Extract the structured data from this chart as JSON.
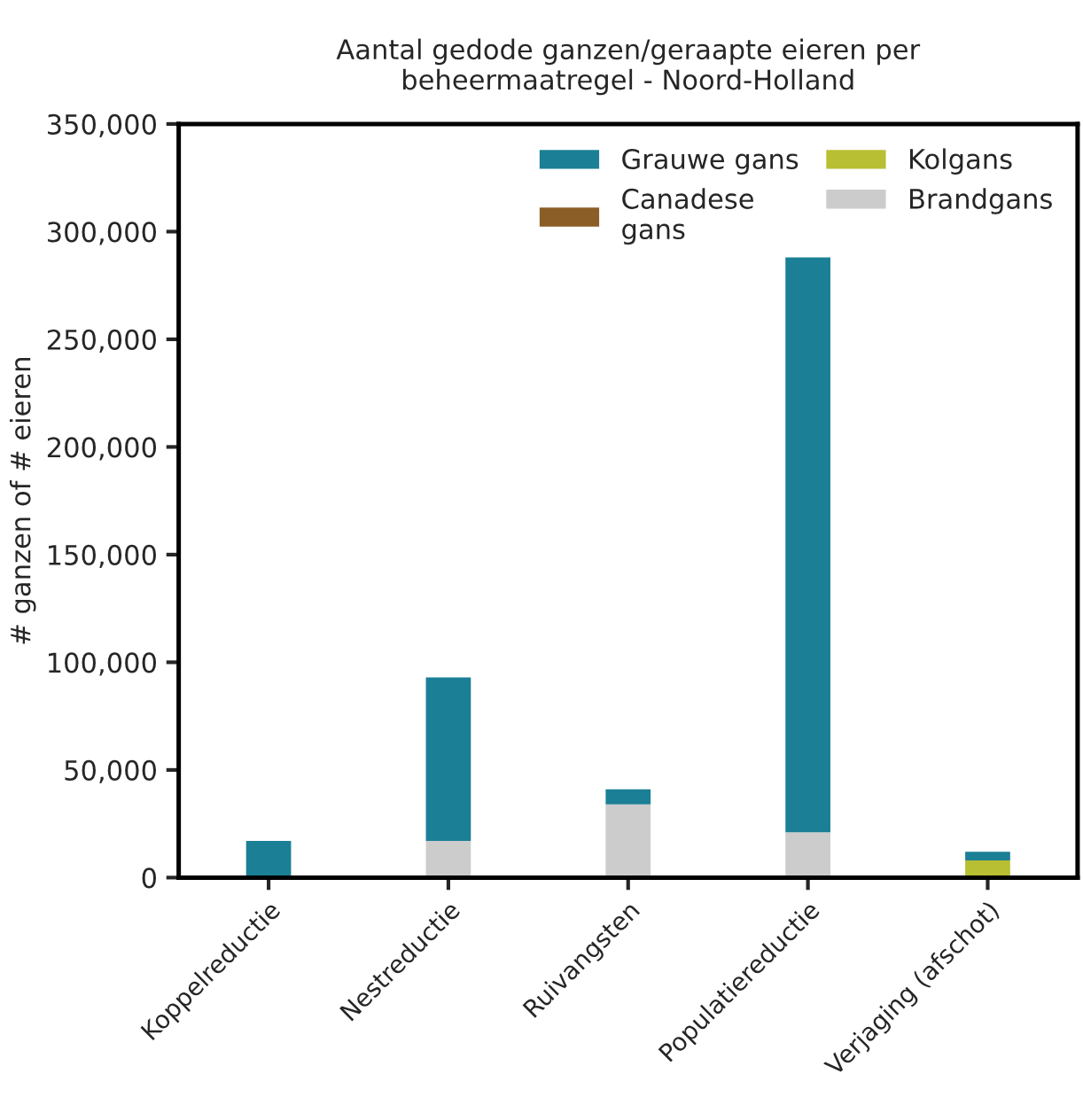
{
  "chart_data": {
    "type": "bar",
    "title": "Aantal gedode ganzen/geraapte eieren per\nbeheermaatregel - Noord-Holland",
    "ylabel": "# ganzen of # eieren",
    "categories": [
      "Koppelreductie",
      "Nestreductie",
      "Ruivangsten",
      "Populatiereductie",
      "Verjaging (afschot)"
    ],
    "stacked": true,
    "series": [
      {
        "name": "Brandgans",
        "color": "#cccccc",
        "values": [
          0,
          17000,
          34000,
          21000,
          0
        ]
      },
      {
        "name": "Kolgans",
        "color": "#b8bf32",
        "values": [
          0,
          0,
          0,
          0,
          8000
        ]
      },
      {
        "name": "Canadese\ngans",
        "color": "#8b5e28",
        "values": [
          0,
          0,
          0,
          0,
          0
        ]
      },
      {
        "name": "Grauwe gans",
        "color": "#1b7f96",
        "values": [
          17000,
          76000,
          7000,
          267000,
          4000
        ]
      }
    ],
    "ylim": [
      0,
      350000
    ],
    "yticks": [
      {
        "value": 0,
        "label": "0"
      },
      {
        "value": 50000,
        "label": "50,000"
      },
      {
        "value": 100000,
        "label": "100,000"
      },
      {
        "value": 150000,
        "label": "150,000"
      },
      {
        "value": 200000,
        "label": "200,000"
      },
      {
        "value": 250000,
        "label": "250,000"
      },
      {
        "value": 300000,
        "label": "300,000"
      },
      {
        "value": 350000,
        "label": "350,000"
      }
    ],
    "grid": false,
    "legend": "top right"
  }
}
